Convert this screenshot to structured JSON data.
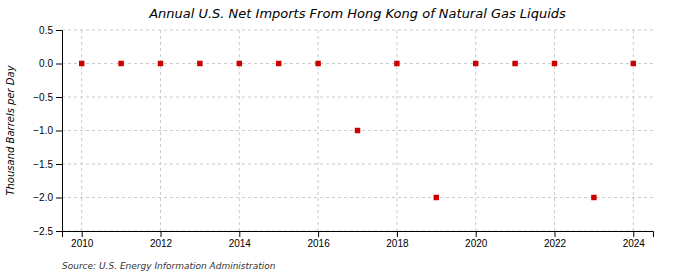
{
  "chart_data": {
    "type": "scatter",
    "title": "Annual U.S. Net Imports From Hong Kong of Natural Gas Liquids",
    "ylabel": "Thousand Barrels per Day",
    "source": "Source: U.S. Energy Information Administration",
    "x": [
      2010,
      2011,
      2012,
      2013,
      2014,
      2015,
      2016,
      2017,
      2018,
      2019,
      2020,
      2021,
      2022,
      2023,
      2024
    ],
    "values": [
      0,
      0,
      0,
      0,
      0,
      0,
      0,
      -1,
      0,
      -2,
      0,
      0,
      0,
      -2,
      0
    ],
    "xlim": [
      2009.5,
      2024.5
    ],
    "xticks": [
      2010,
      2012,
      2014,
      2016,
      2018,
      2020,
      2022,
      2024
    ],
    "ylim": [
      -2.5,
      0.5
    ],
    "yticks": [
      0.5,
      {
        "value": 0.0,
        "label": "0.0"
      },
      {
        "value": -0.5,
        "label": "−0.5"
      },
      {
        "value": -1.0,
        "label": "−1.0"
      },
      {
        "value": -1.5,
        "label": "−1.5"
      },
      {
        "value": -2.0,
        "label": "−2.0"
      },
      {
        "value": -2.5,
        "label": "−2.5"
      }
    ],
    "grid": true,
    "color": "#cc0000",
    "marker": "square"
  }
}
